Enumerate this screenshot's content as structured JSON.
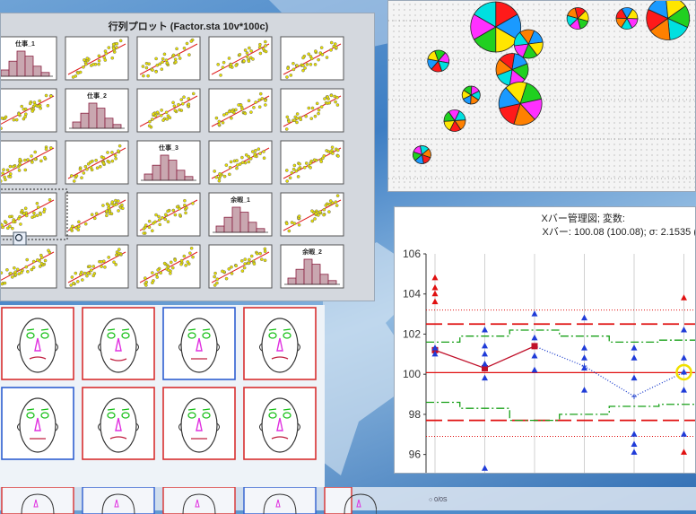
{
  "matrix": {
    "title": "行列プロット (Factor.sta 10v*100c)",
    "variables": [
      "仕事_1",
      "仕事_2",
      "仕事_3",
      "余暇_1",
      "余暇_2"
    ],
    "hist_heights": [
      0.3,
      0.6,
      0.85,
      0.6,
      0.25
    ],
    "colors": {
      "hist_fill": "#c9a7b0",
      "points": "#e8e000",
      "fit_line": "#e02020",
      "cell_bg": "#ffffff"
    }
  },
  "chart_data": [
    {
      "type": "scatter",
      "title": "行列プロット (Factor.sta 10v*100c)",
      "variables": [
        "仕事_1",
        "仕事_2",
        "仕事_3",
        "余暇_1",
        "余暇_2"
      ]
    },
    {
      "type": "scatter",
      "title": "",
      "bubbles": [
        {
          "x": 12,
          "y": 18,
          "r": 14
        },
        {
          "x": 16,
          "y": 16,
          "r": 8
        },
        {
          "x": 22,
          "y": 19,
          "r": 6
        },
        {
          "x": 14,
          "y": 13,
          "r": 9
        },
        {
          "x": 28,
          "y": 19,
          "r": 6
        },
        {
          "x": 33,
          "y": 19,
          "r": 12
        },
        {
          "x": 15,
          "y": 9,
          "r": 12
        },
        {
          "x": 5,
          "y": 14,
          "r": 6
        },
        {
          "x": 9,
          "y": 10,
          "r": 5
        },
        {
          "x": 7,
          "y": 7,
          "r": 6
        },
        {
          "x": 3,
          "y": 3,
          "r": 5
        }
      ]
    },
    {
      "type": "line",
      "title": "Xバー管理図; 変数:",
      "subtitle": "Xバー: 100.08 (100.08); σ: 2.1535 (",
      "ylim": [
        95,
        106
      ],
      "yticks": [
        96,
        98,
        100,
        102,
        104,
        106
      ],
      "x": [
        1,
        2,
        3,
        4,
        5,
        6
      ],
      "means": [
        101.2,
        100.3,
        101.4,
        100.4,
        98.9,
        100.1
      ],
      "points": [
        [
          104.8,
          104.3,
          104.0,
          103.6,
          101.3,
          101.0
        ],
        [
          102.2,
          101.4,
          101.0,
          100.5,
          99.8,
          95.3
        ],
        [
          103.0,
          101.8,
          100.9,
          100.2
        ],
        [
          102.8,
          101.3,
          100.8,
          100.3,
          99.2
        ],
        [
          101.3,
          100.8,
          99.8,
          97.0,
          96.5,
          96.1
        ],
        [
          103.8,
          102.2,
          100.8,
          100.1,
          99.2,
          97.0,
          96.1
        ]
      ],
      "center_line": 100.08,
      "red_dashed": [
        102.5,
        97.7
      ],
      "green_dashdot_upper": [
        101.6,
        101.9,
        102.2,
        101.9,
        101.6,
        101.7
      ],
      "green_dashdot_lower": [
        98.6,
        98.3,
        97.7,
        98.0,
        98.4,
        98.5
      ],
      "dotted_limits": [
        103.2,
        96.9
      ],
      "colors": {
        "first_segment": "#c0102a",
        "second_segment": "#1a3ccc",
        "red": "#e01010",
        "green": "#18a018",
        "points": "#1f3bd8"
      }
    }
  ],
  "faces": {
    "rows": [
      [
        {
          "frame": "#d83030",
          "smile": -1
        },
        {
          "frame": "#d83030",
          "smile": 1
        },
        {
          "frame": "#2f5fd0",
          "smile": 0
        },
        {
          "frame": "#d83030",
          "smile": -1
        }
      ],
      [
        {
          "frame": "#2f5fd0",
          "smile": 0
        },
        {
          "frame": "#d83030",
          "smile": -1
        },
        {
          "frame": "#d83030",
          "smile": 0
        },
        {
          "frame": "#d83030",
          "smile": -1
        }
      ]
    ]
  },
  "bottom_note": "○ 0/0S"
}
